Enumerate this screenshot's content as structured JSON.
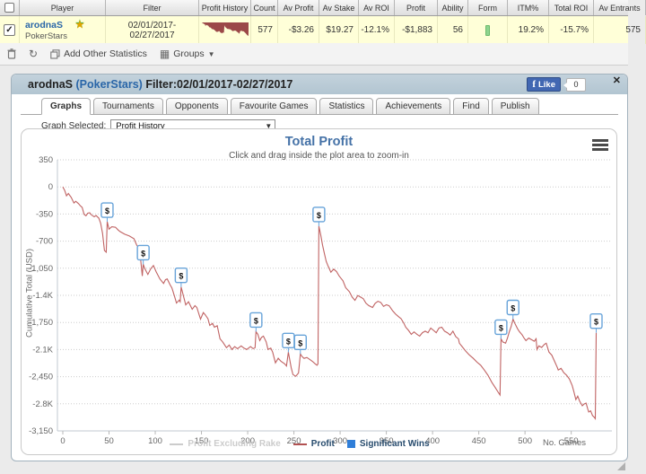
{
  "stats_table": {
    "columns": [
      "",
      "Player",
      "Filter",
      "Profit History",
      "Count",
      "Av Profit",
      "Av Stake",
      "Av ROI",
      "Profit",
      "Ability",
      "Form",
      "ITM%",
      "Total ROI",
      "Av Entrants"
    ],
    "row": {
      "player_name": "arodnaS",
      "network": "PokerStars",
      "filter_line1": "02/01/2017-",
      "filter_line2": "02/27/2017",
      "count": "577",
      "av_profit": "-$3.26",
      "av_stake": "$19.27",
      "av_roi": "-12.1%",
      "profit": "-$1,883",
      "ability": "56",
      "itm_pct": "19.2%",
      "total_roi": "-15.7%",
      "av_entrants": "575"
    }
  },
  "toolbar": {
    "add_other_statistics": "Add Other Statistics",
    "groups": "Groups"
  },
  "window": {
    "title_player": "arodnaS ",
    "title_network": "(PokerStars)",
    "title_filter": " Filter:02/01/2017-02/27/2017",
    "fb_like_label": "Like",
    "fb_like_count": "0",
    "close_glyph": "✕",
    "tabs": [
      "Graphs",
      "Tournaments",
      "Opponents",
      "Favourite Games",
      "Statistics",
      "Achievements",
      "Find",
      "Publish"
    ],
    "active_tab": "Graphs",
    "graph_selected_label": "Graph Selected:",
    "graph_selected_value": "Profit History"
  },
  "chart_data": {
    "type": "line",
    "title": "Total Profit",
    "subtitle": "Click and drag inside the plot area to zoom-in",
    "ylabel": "Cumulative Total (USD)",
    "xlabel": "No. Games",
    "xlim": [
      0,
      594
    ],
    "ylim": [
      -3150,
      350
    ],
    "grid": "horizontal-dotted",
    "x_ticks": [
      0,
      50,
      100,
      150,
      200,
      250,
      300,
      350,
      400,
      450,
      500,
      550
    ],
    "y_ticks": [
      {
        "value": 350,
        "label": "350"
      },
      {
        "value": 0,
        "label": "0"
      },
      {
        "value": -350,
        "label": "-350"
      },
      {
        "value": -700,
        "label": "-700"
      },
      {
        "value": -1050,
        "label": "-1,050"
      },
      {
        "value": -1400,
        "label": "-1.4K"
      },
      {
        "value": -1750,
        "label": "-1,750"
      },
      {
        "value": -2100,
        "label": "-2.1K"
      },
      {
        "value": -2450,
        "label": "-2,450"
      },
      {
        "value": -2800,
        "label": "-2.8K"
      },
      {
        "value": -3150,
        "label": "-3,150"
      }
    ],
    "legend": [
      {
        "label": "Profit Excluding Rake",
        "type": "line",
        "color": "#cccccc",
        "disabled": true
      },
      {
        "label": "Profit",
        "type": "line",
        "color": "#b25252",
        "disabled": false
      },
      {
        "label": "Significant Wins",
        "type": "square",
        "color": "#2f7ed8",
        "disabled": false
      }
    ],
    "series": [
      {
        "name": "Profit",
        "color": "#c06363",
        "points": [
          [
            0,
            0
          ],
          [
            2,
            -45
          ],
          [
            4,
            -115
          ],
          [
            6,
            -85
          ],
          [
            9,
            -135
          ],
          [
            12,
            -208
          ],
          [
            14,
            -185
          ],
          [
            17,
            -215
          ],
          [
            19,
            -245
          ],
          [
            21,
            -265
          ],
          [
            23,
            -355
          ],
          [
            25,
            -372
          ],
          [
            27,
            -340
          ],
          [
            29,
            -334
          ],
          [
            31,
            -362
          ],
          [
            34,
            -386
          ],
          [
            36,
            -370
          ],
          [
            39,
            -404
          ],
          [
            41,
            -470
          ],
          [
            43,
            -600
          ],
          [
            45,
            -820
          ],
          [
            47,
            -842
          ],
          [
            48,
            -450
          ],
          [
            50,
            -545
          ],
          [
            53,
            -515
          ],
          [
            57,
            -520
          ],
          [
            60,
            -558
          ],
          [
            62,
            -577
          ],
          [
            67,
            -611
          ],
          [
            72,
            -634
          ],
          [
            77,
            -669
          ],
          [
            80,
            -752
          ],
          [
            82,
            -784
          ],
          [
            84,
            -905
          ],
          [
            86,
            -1150
          ],
          [
            87,
            -1000
          ],
          [
            89,
            -1062
          ],
          [
            92,
            -1130
          ],
          [
            95,
            -1058
          ],
          [
            98,
            -1015
          ],
          [
            101,
            -1098
          ],
          [
            105,
            -1188
          ],
          [
            109,
            -1246
          ],
          [
            111,
            -1198
          ],
          [
            113,
            -1188
          ],
          [
            116,
            -1262
          ],
          [
            118,
            -1304
          ],
          [
            121,
            -1420
          ],
          [
            123,
            -1500
          ],
          [
            126,
            -1462
          ],
          [
            127,
            -1482
          ],
          [
            128,
            -1292
          ],
          [
            131,
            -1432
          ],
          [
            133,
            -1523
          ],
          [
            136,
            -1482
          ],
          [
            140,
            -1580
          ],
          [
            143,
            -1532
          ],
          [
            145,
            -1557
          ],
          [
            149,
            -1707
          ],
          [
            152,
            -1622
          ],
          [
            154,
            -1650
          ],
          [
            157,
            -1702
          ],
          [
            159,
            -1788
          ],
          [
            162,
            -1762
          ],
          [
            164,
            -1811
          ],
          [
            167,
            -1792
          ],
          [
            170,
            -1961
          ],
          [
            173,
            -2002
          ],
          [
            177,
            -2076
          ],
          [
            180,
            -2042
          ],
          [
            183,
            -2099
          ],
          [
            186,
            -2062
          ],
          [
            189,
            -2088
          ],
          [
            193,
            -2053
          ],
          [
            196,
            -2082
          ],
          [
            199,
            -2099
          ],
          [
            203,
            -2062
          ],
          [
            206,
            -2088
          ],
          [
            208,
            -2076
          ],
          [
            209,
            -1869
          ],
          [
            211,
            -1903
          ],
          [
            213,
            -1984
          ],
          [
            215,
            -1942
          ],
          [
            217,
            -1926
          ],
          [
            220,
            -2002
          ],
          [
            222,
            -2099
          ],
          [
            225,
            -2082
          ],
          [
            227,
            -2134
          ],
          [
            230,
            -2272
          ],
          [
            233,
            -2212
          ],
          [
            236,
            -2252
          ],
          [
            240,
            -2284
          ],
          [
            242,
            -2312
          ],
          [
            244,
            -2134
          ],
          [
            247,
            -2332
          ],
          [
            249,
            -2422
          ],
          [
            252,
            -2445
          ],
          [
            255,
            -2402
          ],
          [
            257,
            -2157
          ],
          [
            259,
            -2192
          ],
          [
            261,
            -2214
          ],
          [
            264,
            -2202
          ],
          [
            267,
            -2226
          ],
          [
            270,
            -2252
          ],
          [
            273,
            -2284
          ],
          [
            275,
            -2302
          ],
          [
            276,
            -2286
          ],
          [
            277,
            -507
          ],
          [
            279,
            -622
          ],
          [
            281,
            -752
          ],
          [
            283,
            -862
          ],
          [
            285,
            -962
          ],
          [
            287,
            -1022
          ],
          [
            290,
            -1102
          ],
          [
            293,
            -1062
          ],
          [
            296,
            -1092
          ],
          [
            299,
            -1152
          ],
          [
            303,
            -1211
          ],
          [
            306,
            -1302
          ],
          [
            310,
            -1352
          ],
          [
            313,
            -1422
          ],
          [
            316,
            -1465
          ],
          [
            319,
            -1402
          ],
          [
            322,
            -1422
          ],
          [
            325,
            -1442
          ],
          [
            328,
            -1502
          ],
          [
            331,
            -1532
          ],
          [
            335,
            -1557
          ],
          [
            338,
            -1502
          ],
          [
            341,
            -1477
          ],
          [
            344,
            -1492
          ],
          [
            347,
            -1542
          ],
          [
            350,
            -1522
          ],
          [
            353,
            -1534
          ],
          [
            357,
            -1602
          ],
          [
            360,
            -1642
          ],
          [
            363,
            -1673
          ],
          [
            366,
            -1702
          ],
          [
            369,
            -1762
          ],
          [
            371,
            -1811
          ],
          [
            374,
            -1852
          ],
          [
            377,
            -1903
          ],
          [
            380,
            -1872
          ],
          [
            383,
            -1902
          ],
          [
            386,
            -1926
          ],
          [
            389,
            -1882
          ],
          [
            392,
            -1862
          ],
          [
            395,
            -1882
          ],
          [
            398,
            -1822
          ],
          [
            401,
            -1852
          ],
          [
            404,
            -1882
          ],
          [
            407,
            -1822
          ],
          [
            410,
            -1811
          ],
          [
            413,
            -1862
          ],
          [
            416,
            -1882
          ],
          [
            419,
            -1912
          ],
          [
            422,
            -1862
          ],
          [
            425,
            -1932
          ],
          [
            428,
            -1962
          ],
          [
            429,
            -2018
          ],
          [
            432,
            -2062
          ],
          [
            436,
            -2122
          ],
          [
            440,
            -2172
          ],
          [
            444,
            -2214
          ],
          [
            448,
            -2262
          ],
          [
            452,
            -2302
          ],
          [
            456,
            -2364
          ],
          [
            460,
            -2432
          ],
          [
            464,
            -2522
          ],
          [
            468,
            -2595
          ],
          [
            471,
            -2652
          ],
          [
            473,
            -2687
          ],
          [
            474,
            -1961
          ],
          [
            476,
            -2002
          ],
          [
            479,
            -2018
          ],
          [
            481,
            -1952
          ],
          [
            483,
            -1872
          ],
          [
            485,
            -1802
          ],
          [
            487,
            -1707
          ],
          [
            489,
            -1762
          ],
          [
            492,
            -1832
          ],
          [
            494,
            -1869
          ],
          [
            497,
            -1912
          ],
          [
            499,
            -1952
          ],
          [
            501,
            -1984
          ],
          [
            504,
            -1952
          ],
          [
            507,
            -1972
          ],
          [
            510,
            -1992
          ],
          [
            512,
            -1961
          ],
          [
            513,
            -2099
          ],
          [
            515,
            -2052
          ],
          [
            518,
            -2072
          ],
          [
            521,
            -2032
          ],
          [
            523,
            -2018
          ],
          [
            526,
            -2134
          ],
          [
            529,
            -2172
          ],
          [
            532,
            -2252
          ],
          [
            535,
            -2332
          ],
          [
            536,
            -2364
          ],
          [
            539,
            -2342
          ],
          [
            542,
            -2399
          ],
          [
            545,
            -2432
          ],
          [
            548,
            -2480
          ],
          [
            551,
            -2562
          ],
          [
            553,
            -2652
          ],
          [
            555,
            -2745
          ],
          [
            557,
            -2702
          ],
          [
            559,
            -2762
          ],
          [
            562,
            -2826
          ],
          [
            564,
            -2802
          ],
          [
            566,
            -2791
          ],
          [
            568,
            -2872
          ],
          [
            569,
            -2906
          ],
          [
            571,
            -2892
          ],
          [
            573,
            -2952
          ],
          [
            575,
            -2975
          ],
          [
            576,
            -2992
          ],
          [
            577,
            -1883
          ]
        ]
      }
    ],
    "significant_wins": [
      [
        48,
        -450
      ],
      [
        87,
        -1000
      ],
      [
        128,
        -1292
      ],
      [
        209,
        -1869
      ],
      [
        244,
        -2134
      ],
      [
        257,
        -2157
      ],
      [
        277,
        -507
      ],
      [
        474,
        -1961
      ],
      [
        487,
        -1707
      ],
      [
        577,
        -1883
      ]
    ],
    "marker_glyph": "$"
  }
}
